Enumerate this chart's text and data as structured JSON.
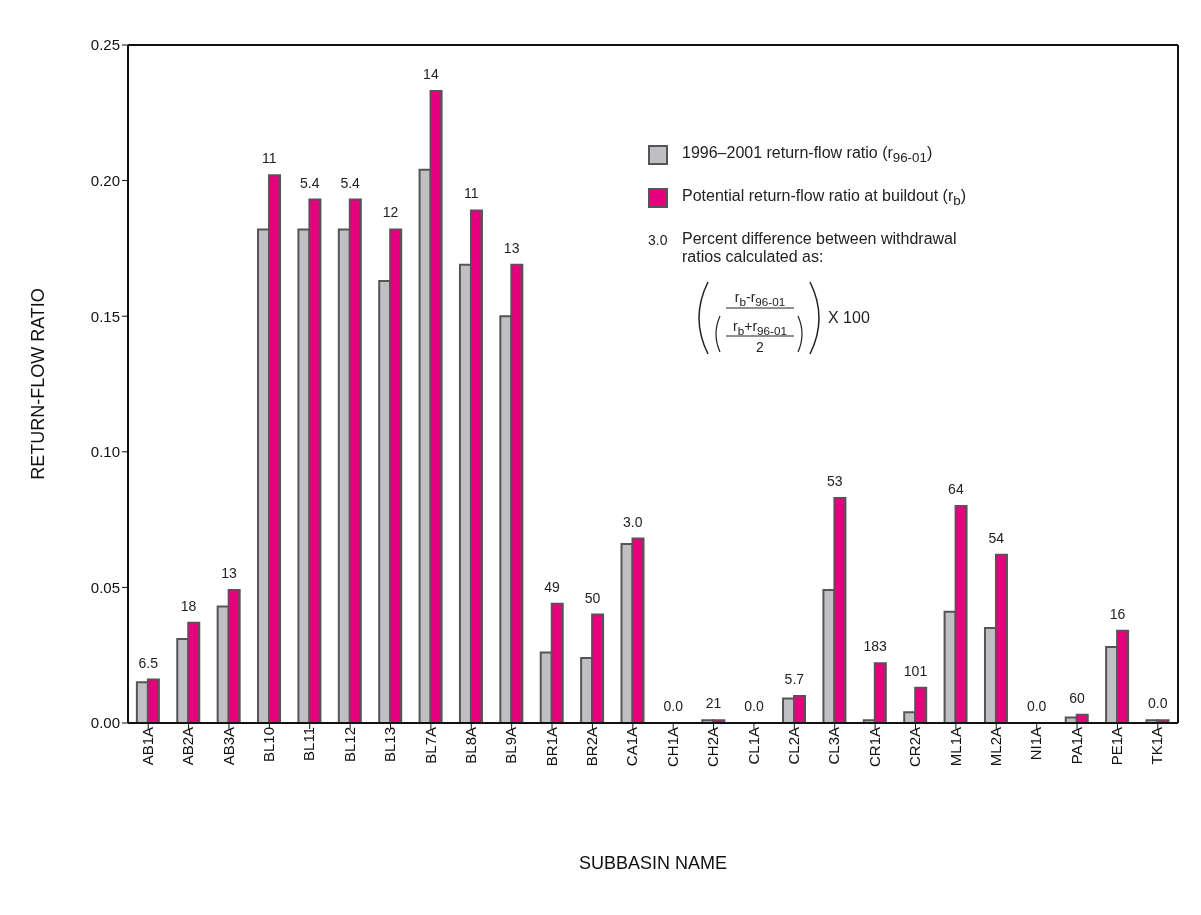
{
  "chart_data": {
    "type": "bar",
    "xlabel": "SUBBASIN NAME",
    "ylabel": "RETURN-FLOW RATIO",
    "categories": [
      "AB1A",
      "AB2A",
      "AB3A",
      "BL10",
      "BL11",
      "BL12",
      "BL13",
      "BL7A",
      "BL8A",
      "BL9A",
      "BR1A",
      "BR2A",
      "CA1A",
      "CH1A",
      "CH2A",
      "CL1A",
      "CL2A",
      "CL3A",
      "CR1A",
      "CR2A",
      "ML1A",
      "ML2A",
      "NI1A",
      "PA1A",
      "PE1A",
      "TK1A"
    ],
    "series": [
      {
        "name": "1996–2001 return-flow ratio (r$_{96-01}$)",
        "color": "#c0c0c4",
        "values": [
          0.015,
          0.031,
          0.043,
          0.182,
          0.182,
          0.182,
          0.163,
          0.204,
          0.169,
          0.15,
          0.026,
          0.024,
          0.066,
          0,
          0.001,
          0,
          0.009,
          0.049,
          0.001,
          0.004,
          0.041,
          0.035,
          0,
          0.002,
          0.028,
          0.001
        ]
      },
      {
        "name": "Potential return-flow ratio at buildout (r$_{b}$)",
        "color": "#e6007e",
        "values": [
          0.016,
          0.037,
          0.049,
          0.202,
          0.193,
          0.193,
          0.182,
          0.233,
          0.189,
          0.169,
          0.044,
          0.04,
          0.068,
          0,
          0.001,
          0,
          0.01,
          0.083,
          0.022,
          0.013,
          0.08,
          0.062,
          0,
          0.003,
          0.034,
          0.001
        ]
      }
    ],
    "ylim": [
      0,
      0.25
    ],
    "yticks": [
      {
        "value": 0,
        "label": "0.00"
      },
      {
        "value": 0.05,
        "label": "0.05"
      },
      {
        "value": 0.1,
        "label": "0.10"
      },
      {
        "value": 0.15,
        "label": "0.15"
      },
      {
        "value": 0.2,
        "label": "0.20"
      },
      {
        "value": 0.25,
        "label": "0.25"
      }
    ],
    "legend": "top right",
    "annotations": [
      {
        "text": "6.5",
        "x": "AB1A",
        "y": 0.016
      },
      {
        "text": "18",
        "x": "AB2A",
        "y": 0.037
      },
      {
        "text": "13",
        "x": "AB3A",
        "y": 0.049
      },
      {
        "text": "11",
        "x": "BL10",
        "y": 0.202
      },
      {
        "text": "5.4",
        "x": "BL11",
        "y": 0.193
      },
      {
        "text": "5.4",
        "x": "BL12",
        "y": 0.193
      },
      {
        "text": "12",
        "x": "BL13",
        "y": 0.182
      },
      {
        "text": "14",
        "x": "BL7A",
        "y": 0.233
      },
      {
        "text": "11",
        "x": "BL8A",
        "y": 0.189
      },
      {
        "text": "13",
        "x": "BL9A",
        "y": 0.169
      },
      {
        "text": "49",
        "x": "BR1A",
        "y": 0.044
      },
      {
        "text": "50",
        "x": "BR2A",
        "y": 0.04
      },
      {
        "text": "3.0",
        "x": "CA1A",
        "y": 0.068
      },
      {
        "text": "0.0",
        "x": "CH1A",
        "y": 0
      },
      {
        "text": "21",
        "x": "CH2A",
        "y": 0.001
      },
      {
        "text": "0.0",
        "x": "CL1A",
        "y": 0
      },
      {
        "text": "5.7",
        "x": "CL2A",
        "y": 0.01
      },
      {
        "text": "53",
        "x": "CL3A",
        "y": 0.083
      },
      {
        "text": "183",
        "x": "CR1A",
        "y": 0.022
      },
      {
        "text": "101",
        "x": "CR2A",
        "y": 0.013
      },
      {
        "text": "64",
        "x": "ML1A",
        "y": 0.08
      },
      {
        "text": "54",
        "x": "ML2A",
        "y": 0.062
      },
      {
        "text": "0.0",
        "x": "NI1A",
        "y": 0
      },
      {
        "text": "60",
        "x": "PA1A",
        "y": 0.003
      },
      {
        "text": "16",
        "x": "PE1A",
        "y": 0.034
      },
      {
        "text": "0.0",
        "x": "TK1A",
        "y": 0.001
      },
      "3.0",
      "Percent difference between withdrawal ratios calculated as:",
      "r$_{b}$-r$_{96-01}$",
      "r$_{b}$+r$_{96-01}$",
      "2",
      "X 100"
    ]
  }
}
